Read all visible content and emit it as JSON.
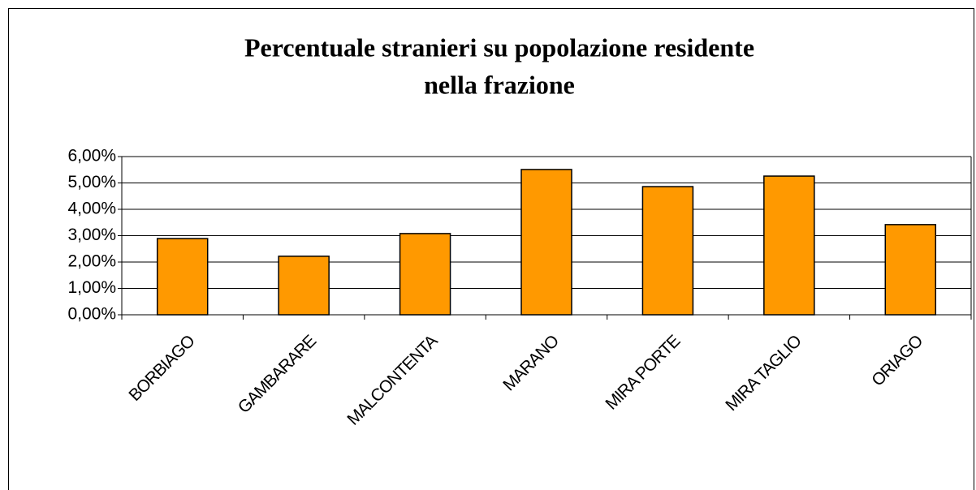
{
  "chart_data": {
    "type": "bar",
    "title": [
      "Percentuale stranieri su popolazione residente",
      "nella frazione"
    ],
    "categories": [
      "BORBIAGO",
      "GAMBARARE",
      "MALCONTENTA",
      "MARANO",
      "MIRA PORTE",
      "MIRA TAGLIO",
      "ORIAGO"
    ],
    "values": [
      2.89,
      2.22,
      3.08,
      5.51,
      4.86,
      5.26,
      3.42
    ],
    "color": "#ff9900",
    "ylim": [
      0,
      6
    ],
    "yticks": [
      {
        "value": 0,
        "label": "0,00%"
      },
      {
        "value": 1,
        "label": "1,00%"
      },
      {
        "value": 2,
        "label": "2,00%"
      },
      {
        "value": 3,
        "label": "3,00%"
      },
      {
        "value": 4,
        "label": "4,00%"
      },
      {
        "value": 5,
        "label": "5,00%"
      },
      {
        "value": 6,
        "label": "6,00%"
      }
    ],
    "grid": true
  }
}
